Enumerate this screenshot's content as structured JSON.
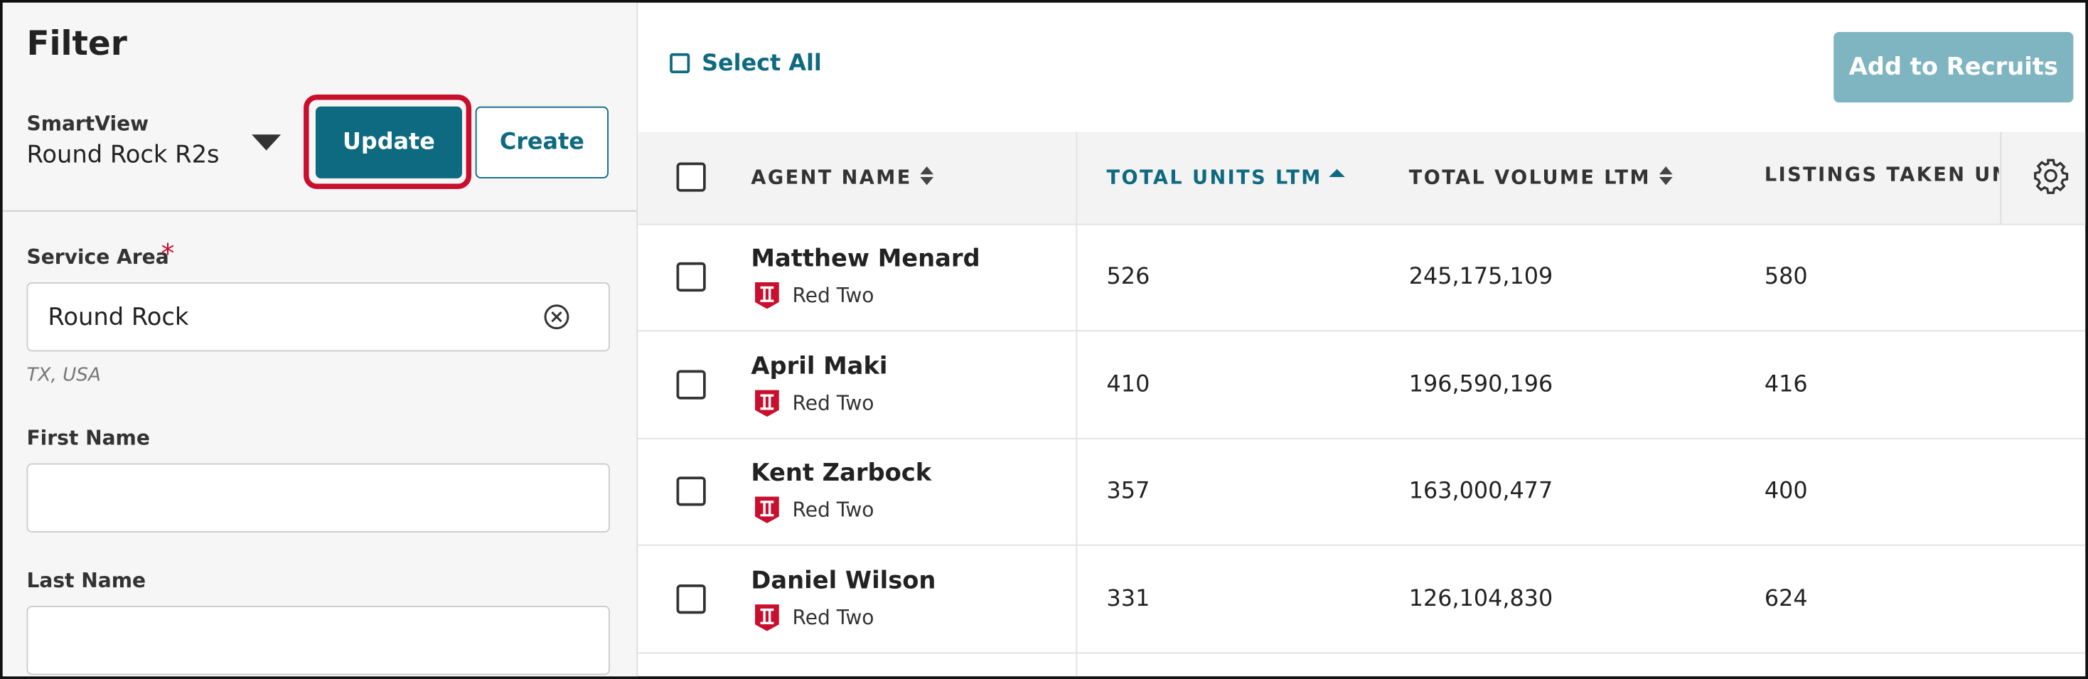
{
  "filter": {
    "title": "Filter",
    "smartview": {
      "label": "SmartView",
      "value": "Round Rock R2s"
    },
    "buttons": {
      "update": "Update",
      "create": "Create"
    },
    "service_area": {
      "label": "Service Area",
      "required": "*",
      "value": "Round Rock",
      "hint": "TX, USA"
    },
    "first_name": {
      "label": "First Name"
    },
    "last_name": {
      "label": "Last Name"
    }
  },
  "table": {
    "select_all": "Select All",
    "add_button": "Add to Recruits",
    "columns": [
      "AGENT NAME",
      "TOTAL UNITS LTM",
      "TOTAL VOLUME LTM",
      "LISTINGS TAKEN UN"
    ],
    "rows": [
      [
        "Matthew Menard",
        "Red Two",
        "526",
        "245,175,109",
        "580"
      ],
      [
        "April Maki",
        "Red Two",
        "410",
        "196,590,196",
        "416"
      ],
      [
        "Kent Zarbock",
        "Red Two",
        "357",
        "163,000,477",
        "400"
      ],
      [
        "Daniel Wilson",
        "Red Two",
        "331",
        "126,104,830",
        "624"
      ]
    ]
  }
}
